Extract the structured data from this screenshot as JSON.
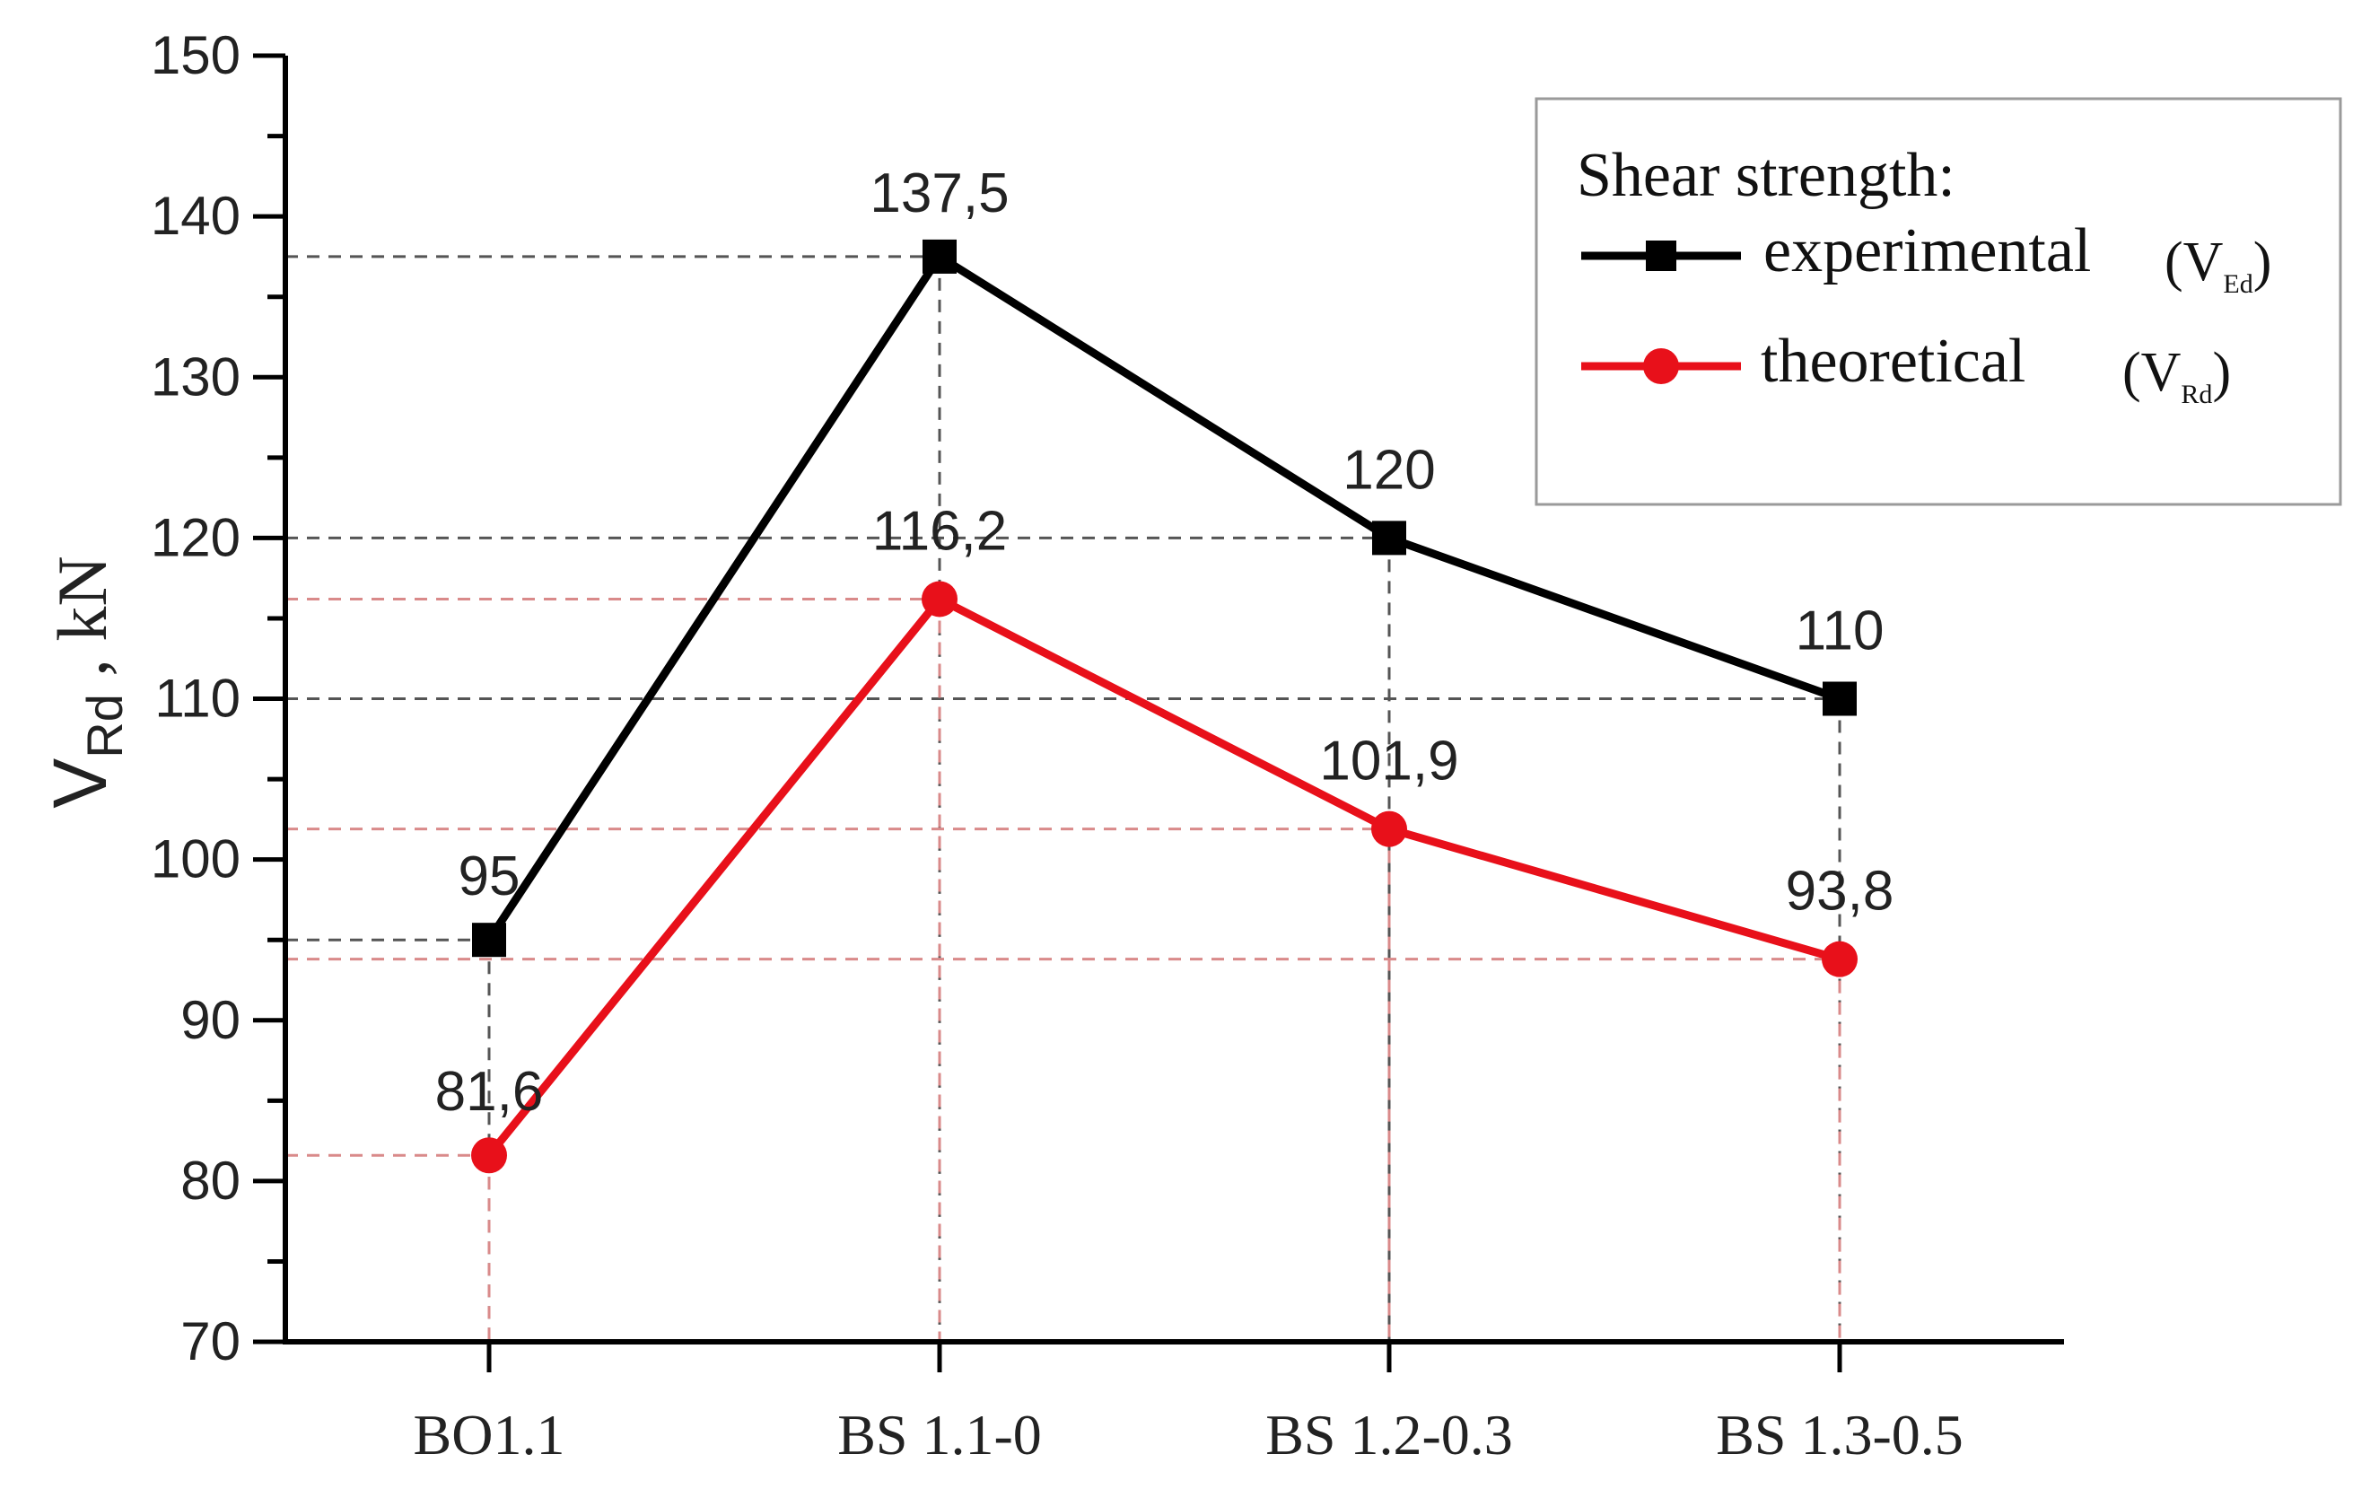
{
  "chart_data": {
    "type": "line",
    "categories": [
      "BO1.1",
      "BS 1.1-0",
      "BS 1.2-0.3",
      "BS 1.3-0.5"
    ],
    "series": [
      {
        "name": "experimental",
        "symbol_label": "(V",
        "subscript": "Ed",
        "symbol_close": ")",
        "marker": "square",
        "color": "#000000",
        "values": [
          95,
          137.5,
          120,
          110
        ],
        "labels": [
          "95",
          "137,5",
          "120",
          "110"
        ]
      },
      {
        "name": "theoretical",
        "symbol_label": "(V",
        "subscript": "Rd",
        "symbol_close": ")",
        "marker": "circle",
        "color": "#e8101a",
        "values": [
          81.6,
          116.2,
          101.9,
          93.8
        ],
        "labels": [
          "81,6",
          "116,2",
          "101,9",
          "93,8"
        ]
      }
    ],
    "ylabel": {
      "main": "V",
      "subscript": "Rd",
      "unit": " , kN"
    },
    "ylim": [
      70,
      150
    ],
    "yticks": [
      "70",
      "80",
      "90",
      "100",
      "110",
      "120",
      "130",
      "140",
      "150"
    ],
    "legend": {
      "title": "Shear strength:",
      "position": "top-right"
    },
    "grid": false,
    "guide_lines": true
  }
}
